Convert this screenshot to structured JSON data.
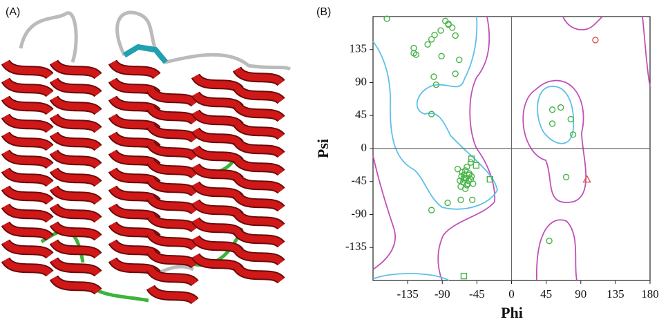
{
  "panels": {
    "left_label": "(A)",
    "right_label": "(B)"
  },
  "chart_data": {
    "type": "scatter",
    "xlabel": "Phi",
    "ylabel": "Psi",
    "xlim": [
      -180,
      180
    ],
    "ylim": [
      -180,
      180
    ],
    "xticks": [
      -135,
      -90,
      -45,
      0,
      45,
      90,
      135,
      180
    ],
    "yticks": [
      -135,
      -90,
      -45,
      0,
      45,
      90,
      135
    ],
    "series": [
      {
        "color": "#46b446",
        "marker": "circle",
        "x": [
          -162,
          -86,
          -82,
          -77,
          -92,
          -100,
          -104,
          -109,
          -127,
          -124,
          -91,
          -73,
          -68,
          -101,
          -98,
          -104,
          -73,
          -82,
          -127,
          -59,
          -62,
          -56,
          -65,
          -53,
          -60,
          -58,
          -63,
          -55,
          -67,
          -61,
          -57,
          -64,
          -52,
          -60,
          -70,
          -50,
          -66,
          -58,
          -62,
          -55,
          -104,
          -83,
          -66,
          -51,
          -53,
          53,
          64,
          53,
          77,
          80,
          71,
          49
        ],
        "y": [
          177,
          174,
          169,
          165,
          161,
          155,
          149,
          142,
          137,
          128,
          126,
          154,
          121,
          98,
          87,
          47,
          102,
          170,
          130,
          -40,
          -36,
          -44,
          -38,
          -42,
          -30,
          -50,
          -46,
          -34,
          -44,
          -40,
          -48,
          -32,
          -38,
          -55,
          -28,
          -48,
          -52,
          -25,
          -42,
          -36,
          -84,
          -74,
          -70,
          -70,
          -19,
          53,
          56,
          34,
          40,
          19,
          -39,
          -126
        ]
      },
      {
        "color": "#46b446",
        "marker": "square",
        "x": [
          -52,
          -28,
          -46,
          -62
        ],
        "y": [
          -14,
          -42,
          -23,
          -174
        ]
      },
      {
        "color": "#e0504a",
        "marker": "circle",
        "x": [
          109
        ],
        "y": [
          148
        ]
      },
      {
        "color": "#e0504a",
        "marker": "triangle",
        "x": [
          98
        ],
        "y": [
          -42
        ]
      }
    ]
  }
}
